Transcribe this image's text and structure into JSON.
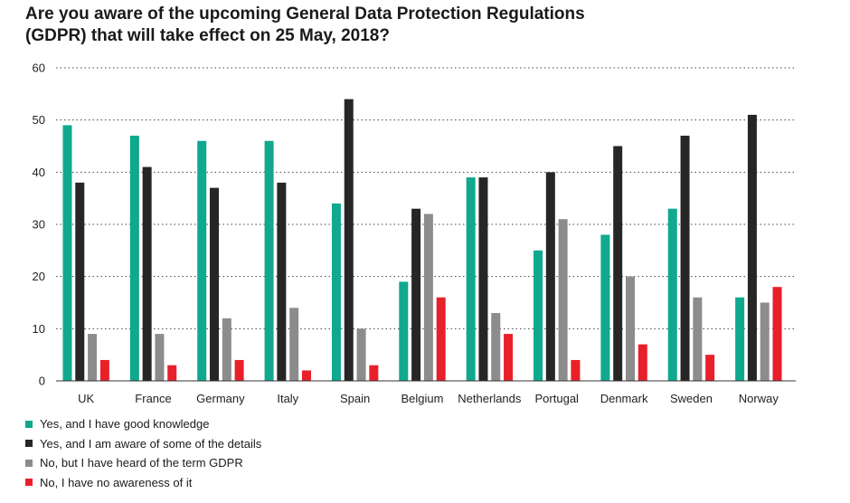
{
  "chart_data": {
    "type": "bar",
    "title_lines": [
      "Are you aware of the upcoming General Data Protection Regulations",
      "(GDPR) that will take effect on 25 May, 2018?"
    ],
    "categories": [
      "UK",
      "France",
      "Germany",
      "Italy",
      "Spain",
      "Belgium",
      "Netherlands",
      "Portugal",
      "Denmark",
      "Sweden",
      "Norway"
    ],
    "series": [
      {
        "name": "Yes, and I have good knowledge",
        "color": "#10a88e",
        "values": [
          49,
          47,
          46,
          46,
          34,
          19,
          39,
          25,
          28,
          33,
          16
        ]
      },
      {
        "name": "Yes, and I am aware of some of the details",
        "color": "#262626",
        "values": [
          38,
          41,
          37,
          38,
          54,
          33,
          39,
          40,
          45,
          47,
          51
        ]
      },
      {
        "name": "No, but I have heard of the term GDPR",
        "color": "#8c8c8c",
        "values": [
          9,
          9,
          12,
          14,
          10,
          32,
          13,
          31,
          20,
          16,
          15
        ]
      },
      {
        "name": "No, I have no awareness of it",
        "color": "#e8202a",
        "values": [
          4,
          3,
          4,
          2,
          3,
          16,
          9,
          4,
          7,
          5,
          18
        ]
      }
    ],
    "ylim": [
      0,
      60
    ],
    "yticks": [
      0,
      10,
      20,
      30,
      40,
      50,
      60
    ],
    "grid": true,
    "legend_position": "bottom-left"
  }
}
